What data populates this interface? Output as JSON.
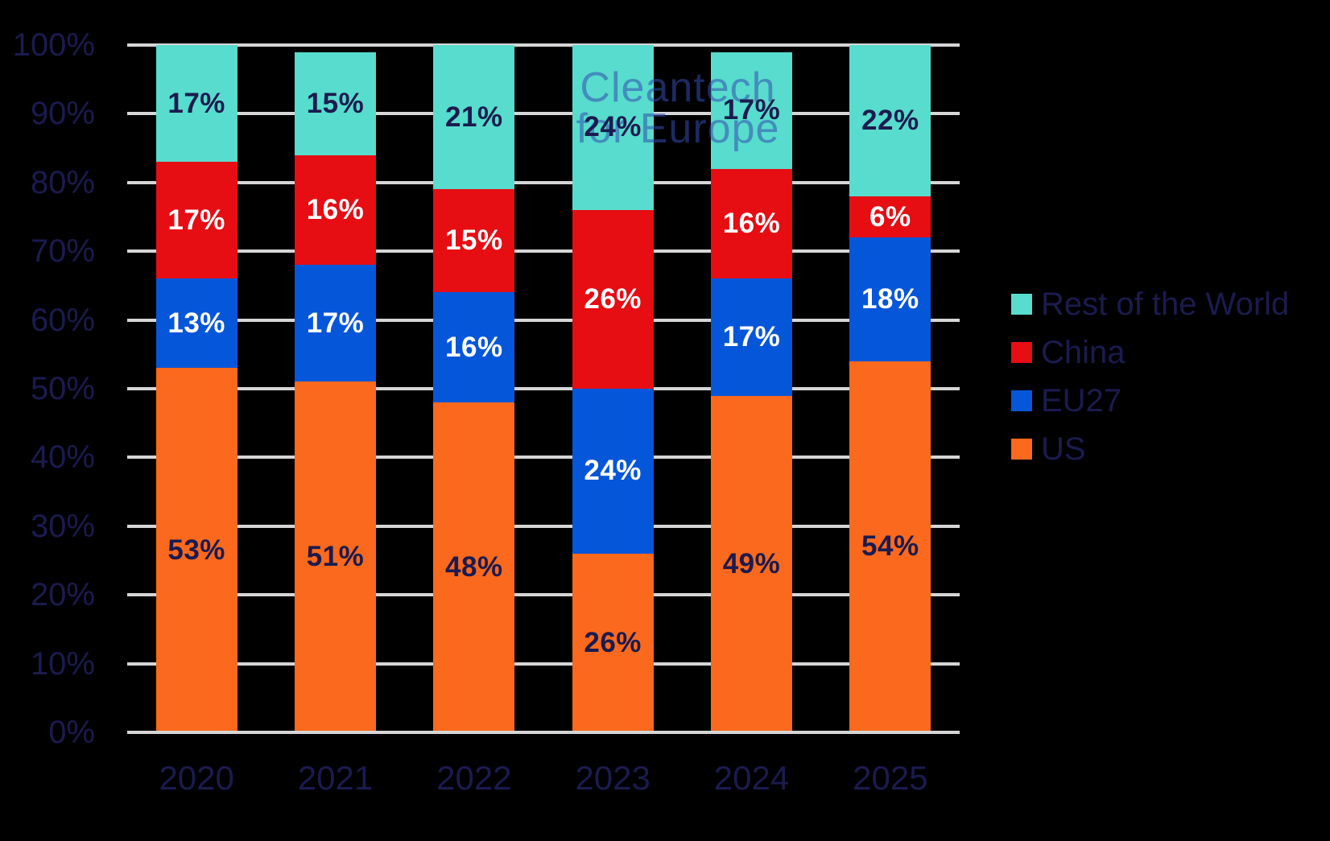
{
  "colors": {
    "background": "#000000",
    "navy_text": "#1B1B4F",
    "gridline": "#D6D6D6",
    "white_label": "#FFFFFF",
    "watermark": "rgba(51,76,175,0.55)",
    "us_orange": "#FA691D",
    "eu27_blue": "#0656D9",
    "china_red": "#E60D13",
    "row_teal": "#57DCCD"
  },
  "watermark": {
    "line1": "Cleantech",
    "line2": "for Europe"
  },
  "chart_data": {
    "type": "bar",
    "variant": "stacked-100-percent",
    "title": "",
    "xlabel": "",
    "ylabel": "",
    "unit": "%",
    "categories": [
      "2020",
      "2021",
      "2022",
      "2023",
      "2024",
      "2025"
    ],
    "series": [
      {
        "name": "US",
        "color": "#FA691D",
        "label_color": "#1B1B4F",
        "values": [
          53,
          51,
          48,
          26,
          49,
          54
        ]
      },
      {
        "name": "EU27",
        "color": "#0656D9",
        "label_color": "#FFFFFF",
        "values": [
          13,
          17,
          16,
          24,
          17,
          18
        ]
      },
      {
        "name": "China",
        "color": "#E60D13",
        "label_color": "#FFFFFF",
        "values": [
          17,
          16,
          15,
          26,
          16,
          6
        ]
      },
      {
        "name": "Rest of the World",
        "color": "#57DCCD",
        "label_color": "#1B1B4F",
        "values": [
          17,
          15,
          21,
          24,
          17,
          22
        ]
      }
    ],
    "y_ticks": [
      "0%",
      "10%",
      "20%",
      "30%",
      "40%",
      "50%",
      "60%",
      "70%",
      "80%",
      "90%",
      "100%"
    ],
    "ylim": [
      0,
      100
    ],
    "grid": true,
    "legend_position": "right"
  },
  "legend": {
    "items": [
      {
        "label": "Rest of the World",
        "color": "#57DCCD"
      },
      {
        "label": "China",
        "color": "#E60D13"
      },
      {
        "label": "EU27",
        "color": "#0656D9"
      },
      {
        "label": "US",
        "color": "#FA691D"
      }
    ]
  }
}
